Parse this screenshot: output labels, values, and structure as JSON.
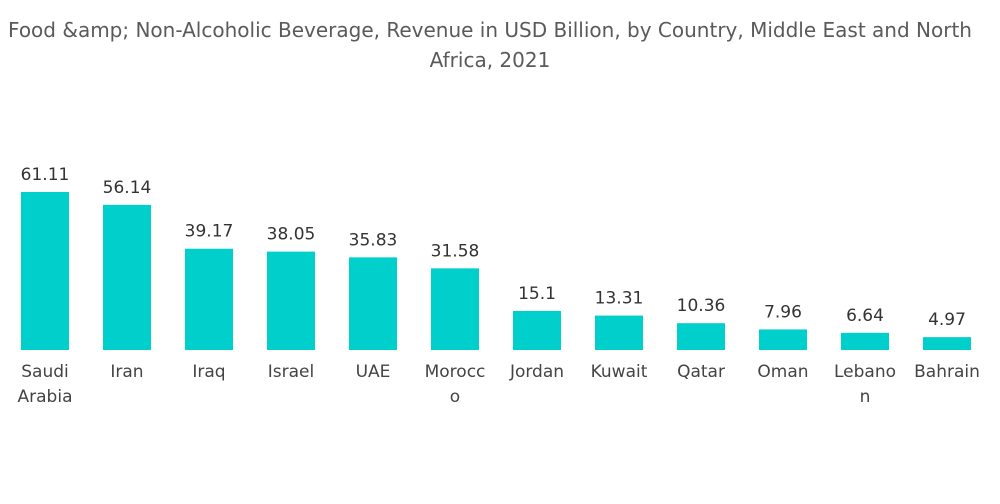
{
  "chart_data": {
    "type": "bar",
    "title_lines": [
      "Food &amp; Non-Alcoholic Beverage, Revenue in USD Billion, by Country, Middle East and North",
      "Africa, 2021"
    ],
    "categories": [
      "Saudi Arabia",
      "Iran",
      "Iraq",
      "Israel",
      "UAE",
      "Morocco",
      "Jordan",
      "Kuwait",
      "Qatar",
      "Oman",
      "Lebanon",
      "Bahrain"
    ],
    "category_label_lines": [
      [
        "Saudi",
        "Arabia"
      ],
      [
        "Iran"
      ],
      [
        "Iraq"
      ],
      [
        "Israel"
      ],
      [
        "UAE"
      ],
      [
        "Morocc",
        "o"
      ],
      [
        "Jordan"
      ],
      [
        "Kuwait"
      ],
      [
        "Qatar"
      ],
      [
        "Oman"
      ],
      [
        "Lebano",
        "n"
      ],
      [
        "Bahrain"
      ]
    ],
    "values": [
      61.11,
      56.14,
      39.17,
      38.05,
      35.83,
      31.58,
      15.1,
      13.31,
      10.36,
      7.96,
      6.64,
      4.97
    ],
    "value_labels": [
      "61.11",
      "56.14",
      "39.17",
      "38.05",
      "35.83",
      "31.58",
      "15.1",
      "13.31",
      "10.36",
      "7.96",
      "6.64",
      "4.97"
    ],
    "xlabel": "",
    "ylabel": "",
    "ylim": [
      0,
      61.11
    ],
    "grid": false,
    "legend": "none",
    "bar_color": "#00cfcc"
  }
}
